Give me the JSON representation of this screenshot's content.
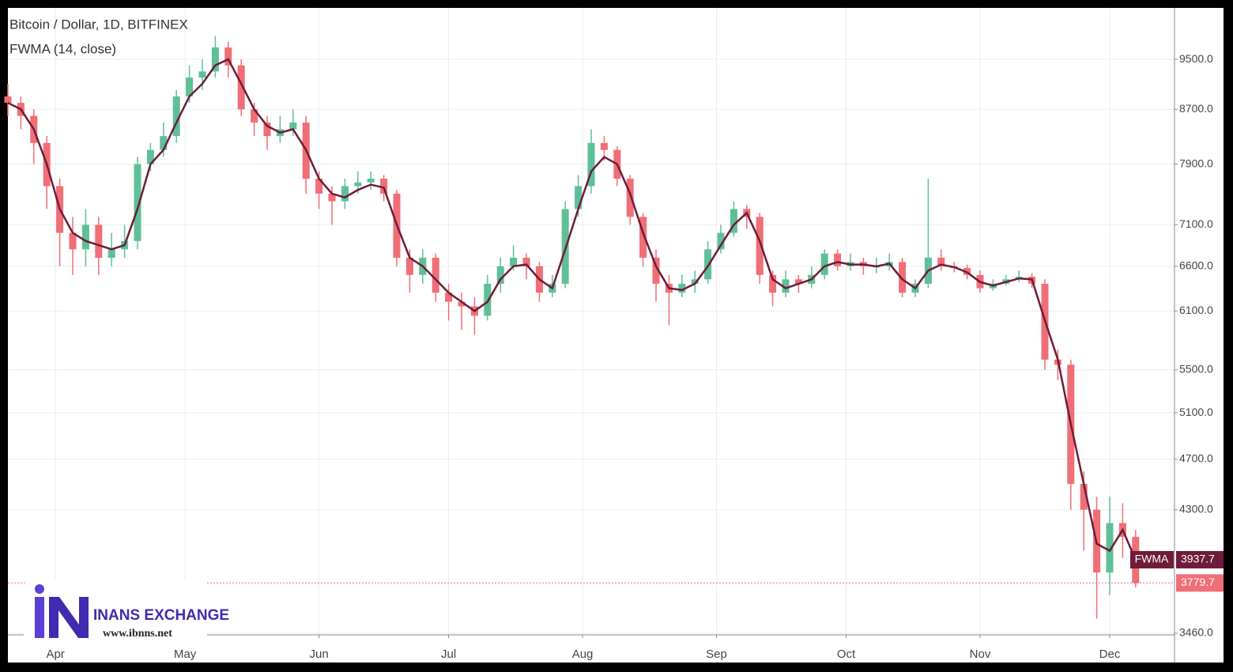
{
  "chart_data": {
    "type": "candlestick",
    "title": "Bitcoin / Dollar, 1D, BITFINEX",
    "log_scale": true,
    "grid": true,
    "up_color": "#5fbf98",
    "down_color": "#f06e76",
    "xlim": [
      80,
      350
    ],
    "xticks": [
      {
        "value": 91,
        "label": "Apr"
      },
      {
        "value": 121,
        "label": "May"
      },
      {
        "value": 152,
        "label": "Jun"
      },
      {
        "value": 182,
        "label": "Jul"
      },
      {
        "value": 213,
        "label": "Aug"
      },
      {
        "value": 244,
        "label": "Sep"
      },
      {
        "value": 274,
        "label": "Oct"
      },
      {
        "value": 305,
        "label": "Nov"
      },
      {
        "value": 335,
        "label": "Dec"
      }
    ],
    "ylim": [
      3450,
      10400
    ],
    "yticks": [
      {
        "value": 9500,
        "label": "9500.0"
      },
      {
        "value": 8700,
        "label": "8700.0"
      },
      {
        "value": 7900,
        "label": "7900.0"
      },
      {
        "value": 7100,
        "label": "7100.0"
      },
      {
        "value": 6600,
        "label": "6600.0"
      },
      {
        "value": 6100,
        "label": "6100.0"
      },
      {
        "value": 5500,
        "label": "5500.0"
      },
      {
        "value": 5100,
        "label": "5100.0"
      },
      {
        "value": 4700,
        "label": "4700.0"
      },
      {
        "value": 4300,
        "label": "4300.0"
      },
      {
        "value": 3460,
        "label": "3460.0"
      }
    ],
    "x": [
      80,
      83,
      86,
      89,
      92,
      95,
      98,
      101,
      104,
      107,
      110,
      113,
      116,
      119,
      122,
      125,
      128,
      131,
      134,
      137,
      140,
      143,
      146,
      149,
      152,
      155,
      158,
      161,
      164,
      167,
      170,
      173,
      176,
      179,
      182,
      185,
      188,
      191,
      194,
      197,
      200,
      203,
      206,
      209,
      212,
      215,
      218,
      221,
      224,
      227,
      230,
      233,
      236,
      239,
      242,
      245,
      248,
      251,
      254,
      257,
      260,
      263,
      266,
      269,
      272,
      275,
      278,
      281,
      284,
      287,
      290,
      293,
      296,
      299,
      302,
      305,
      308,
      311,
      314,
      317,
      320,
      323,
      326,
      329,
      332,
      335,
      338,
      341
    ],
    "open": [
      8900,
      8800,
      8600,
      8200,
      7600,
      7000,
      6800,
      7100,
      6700,
      6800,
      6900,
      7900,
      8100,
      8300,
      8900,
      9200,
      9300,
      9700,
      9400,
      8700,
      8500,
      8300,
      8400,
      8500,
      7700,
      7500,
      7400,
      7600,
      7650,
      7700,
      7500,
      6700,
      6500,
      6700,
      6300,
      6200,
      6150,
      6050,
      6400,
      6600,
      6700,
      6600,
      6300,
      6400,
      7300,
      7600,
      8200,
      8100,
      7700,
      7200,
      6700,
      6400,
      6300,
      6400,
      6450,
      6800,
      7000,
      7300,
      7200,
      6500,
      6300,
      6450,
      6400,
      6500,
      6750,
      6600,
      6650,
      6600,
      6600,
      6650,
      6300,
      6400,
      6700,
      6600,
      6580,
      6500,
      6350,
      6400,
      6450,
      6480,
      6400,
      5600,
      5550,
      4500,
      4300,
      3850,
      4200,
      4100
    ],
    "high": [
      9100,
      8900,
      8700,
      8300,
      7700,
      7200,
      7300,
      7200,
      7000,
      7100,
      8000,
      8200,
      8500,
      9000,
      9400,
      9500,
      9900,
      9800,
      9500,
      8800,
      8600,
      8600,
      8700,
      8600,
      7800,
      7600,
      7700,
      7800,
      7800,
      7750,
      7550,
      6800,
      6800,
      6750,
      6400,
      6300,
      6250,
      6500,
      6700,
      6850,
      6750,
      6650,
      6500,
      7400,
      7750,
      8400,
      8300,
      8150,
      7750,
      7250,
      6800,
      6500,
      6500,
      6550,
      6900,
      7100,
      7400,
      7350,
      7250,
      6550,
      6550,
      6500,
      6600,
      6800,
      6800,
      6750,
      6700,
      6700,
      6750,
      6700,
      6450,
      7700,
      6800,
      6650,
      6620,
      6550,
      6450,
      6500,
      6550,
      6520,
      6450,
      5700,
      5600,
      4600,
      4400,
      4400,
      4350,
      4150
    ],
    "low": [
      8600,
      8400,
      7900,
      7300,
      6600,
      6500,
      6600,
      6500,
      6600,
      6700,
      6800,
      7800,
      8000,
      8200,
      8800,
      9000,
      9200,
      9200,
      8600,
      8300,
      8100,
      8200,
      8300,
      7500,
      7300,
      7100,
      7300,
      7500,
      7550,
      7400,
      6600,
      6300,
      6400,
      6200,
      6000,
      5900,
      5850,
      6000,
      6300,
      6550,
      6450,
      6200,
      6250,
      6350,
      7200,
      7500,
      7950,
      7600,
      7100,
      6600,
      6200,
      5950,
      6250,
      6300,
      6400,
      6750,
      6950,
      7050,
      6400,
      6150,
      6250,
      6300,
      6350,
      6450,
      6550,
      6550,
      6500,
      6520,
      6550,
      6250,
      6250,
      6350,
      6550,
      6530,
      6450,
      6300,
      6320,
      6380,
      6420,
      6350,
      5500,
      5400,
      4300,
      4000,
      3550,
      3700,
      3950,
      3750
    ],
    "close": [
      8800,
      8600,
      8200,
      7600,
      7000,
      6800,
      7100,
      6700,
      6800,
      6900,
      7900,
      8100,
      8300,
      8900,
      9200,
      9300,
      9700,
      9400,
      8700,
      8500,
      8300,
      8400,
      8500,
      7700,
      7500,
      7400,
      7600,
      7650,
      7700,
      7500,
      6700,
      6500,
      6700,
      6300,
      6200,
      6150,
      6050,
      6400,
      6600,
      6700,
      6600,
      6300,
      6400,
      7300,
      7600,
      8200,
      8100,
      7700,
      7200,
      6700,
      6400,
      6300,
      6400,
      6450,
      6800,
      7000,
      7300,
      7200,
      6500,
      6300,
      6450,
      6400,
      6500,
      6750,
      6600,
      6650,
      6600,
      6600,
      6650,
      6300,
      6400,
      6700,
      6600,
      6580,
      6500,
      6350,
      6400,
      6450,
      6480,
      6400,
      5600,
      5550,
      4500,
      4300,
      3850,
      4200,
      4100,
      3779.7
    ],
    "indicator": {
      "name": "FWMA",
      "label": "FWMA (14, close)",
      "color": "#6e1c3a",
      "values": [
        8800,
        8700,
        8400,
        7900,
        7300,
        7000,
        6900,
        6850,
        6800,
        6850,
        7300,
        7900,
        8100,
        8500,
        8900,
        9100,
        9400,
        9500,
        9100,
        8700,
        8450,
        8350,
        8400,
        8100,
        7700,
        7500,
        7450,
        7550,
        7620,
        7580,
        7100,
        6700,
        6600,
        6450,
        6300,
        6200,
        6100,
        6200,
        6450,
        6600,
        6620,
        6450,
        6350,
        6800,
        7300,
        7800,
        8000,
        7900,
        7500,
        7000,
        6600,
        6350,
        6330,
        6400,
        6600,
        6850,
        7100,
        7250,
        6900,
        6450,
        6350,
        6400,
        6450,
        6600,
        6650,
        6620,
        6620,
        6600,
        6630,
        6450,
        6350,
        6550,
        6620,
        6590,
        6530,
        6420,
        6380,
        6420,
        6460,
        6450,
        6000,
        5600,
        5000,
        4500,
        4050,
        4000,
        4150,
        3937.7
      ]
    }
  },
  "logo": {
    "name": "INANS EXCHANGE",
    "url": "www.ibnns.net"
  }
}
